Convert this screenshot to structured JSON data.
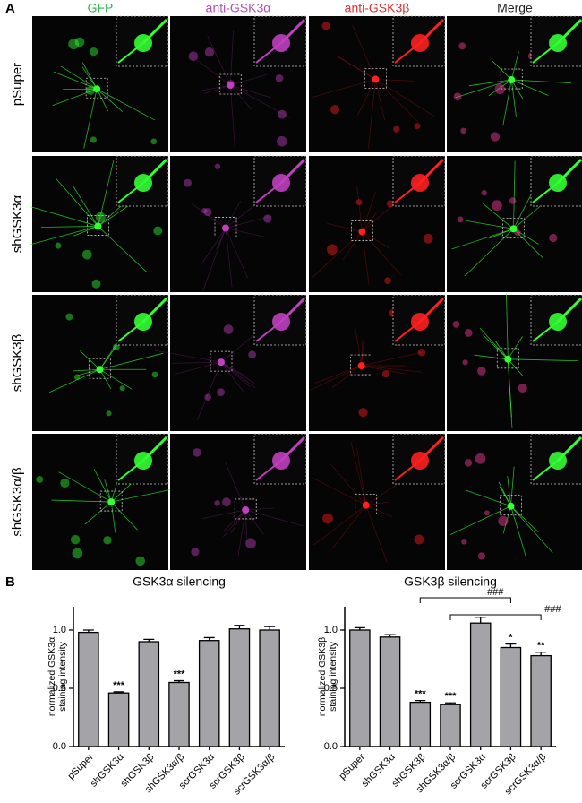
{
  "panel_a": {
    "label": "A",
    "columns": [
      {
        "text": "GFP",
        "color": "#2bb34a"
      },
      {
        "text": "anti-GSK3α",
        "color": "#b04fb0"
      },
      {
        "text": "anti-GSK3β",
        "color": "#e03030"
      },
      {
        "text": "Merge",
        "color": "#222222"
      }
    ],
    "rows": [
      "pSuper",
      "shGSK3α",
      "shGSK3β",
      "shGSK3α/β"
    ]
  },
  "panel_b": {
    "label": "B"
  },
  "chart_data": [
    {
      "type": "bar",
      "title": "GSK3α silencing",
      "ylabel": [
        "normalized GSK3α",
        "staining intensity"
      ],
      "categories": [
        "pSuper",
        "shGSK3α",
        "shGSK3β",
        "shGSK3α/β",
        "scrGSK3α",
        "scrGSK3β",
        "scrGSK3α/β"
      ],
      "values": [
        0.98,
        0.46,
        0.9,
        0.55,
        0.91,
        1.01,
        1.0
      ],
      "errors": [
        0.02,
        0.01,
        0.02,
        0.015,
        0.025,
        0.03,
        0.03
      ],
      "significance": [
        null,
        "***",
        null,
        "***",
        null,
        null,
        null
      ],
      "comparisons": [],
      "color": "#a3a3a8",
      "ylim": [
        0,
        1.2
      ],
      "yticks": [
        {
          "value": 0,
          "label": "0.0"
        },
        {
          "value": 0.5,
          "label": "0.5"
        },
        {
          "value": 1,
          "label": "1.0"
        }
      ]
    },
    {
      "type": "bar",
      "title": "GSK3β silencing",
      "ylabel": [
        "normalized GSK3β",
        "staining intensity"
      ],
      "categories": [
        "pSuper",
        "shGSK3α",
        "shGSK3β",
        "shGSK3α/β",
        "scrGSK3α",
        "scrGSK3β",
        "scrGSK3α/β"
      ],
      "values": [
        1.0,
        0.94,
        0.38,
        0.36,
        1.06,
        0.85,
        0.78
      ],
      "errors": [
        0.02,
        0.02,
        0.015,
        0.015,
        0.05,
        0.03,
        0.03
      ],
      "significance": [
        null,
        null,
        "***",
        "***",
        null,
        "*",
        "**"
      ],
      "comparisons": [
        {
          "between": [
            "shGSK3β",
            "scrGSK3β"
          ],
          "label": "###"
        },
        {
          "between": [
            "shGSK3α/β",
            "scrGSK3α/β"
          ],
          "label": "###"
        }
      ],
      "color": "#a3a3a8",
      "ylim": [
        0,
        1.2
      ],
      "yticks": [
        {
          "value": 0,
          "label": "0.0"
        },
        {
          "value": 0.5,
          "label": "0.5"
        },
        {
          "value": 1,
          "label": "1.0"
        }
      ]
    }
  ]
}
